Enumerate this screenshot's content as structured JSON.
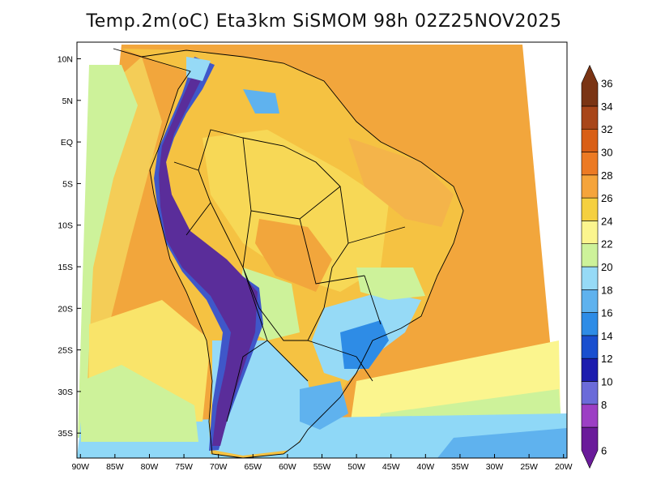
{
  "title": "Temp.2m(oC) Eta3km SiSMOM 98h 02Z25NOV2025",
  "map": {
    "variable": "2 m temperature",
    "units": "oC",
    "lat_labels": [
      "10N",
      "5N",
      "EQ",
      "5S",
      "10S",
      "15S",
      "20S",
      "25S",
      "30S",
      "35S"
    ],
    "lat_values": [
      10,
      5,
      0,
      -5,
      -10,
      -15,
      -20,
      -25,
      -30,
      -35
    ],
    "lon_labels": [
      "90W",
      "85W",
      "80W",
      "75W",
      "70W",
      "65W",
      "60W",
      "55W",
      "50W",
      "45W",
      "40W",
      "35W",
      "30W",
      "25W",
      "20W"
    ],
    "lon_values": [
      -90,
      -85,
      -80,
      -75,
      -70,
      -65,
      -60,
      -55,
      -50,
      -45,
      -40,
      -35,
      -30,
      -25,
      -20
    ],
    "lon_range": [
      -90.5,
      -19.5
    ],
    "lat_range": [
      -38,
      12
    ],
    "regions": [
      {
        "name": "ocean-atlantic-warm",
        "color": "#f2a63c"
      },
      {
        "name": "ocean-pacific-warm",
        "color": "#f2a63c"
      },
      {
        "name": "brazil-interior",
        "color": "#f5c242"
      },
      {
        "name": "southern-ocean-cool",
        "color": "#8fd8f7"
      },
      {
        "name": "andes-cold",
        "color": "#5a2d9a"
      }
    ]
  },
  "colorbar": {
    "labels": [
      "6",
      "8",
      "10",
      "12",
      "14",
      "16",
      "18",
      "20",
      "22",
      "24",
      "26",
      "28",
      "30",
      "32",
      "34",
      "36"
    ],
    "levels": [
      6,
      8,
      10,
      12,
      14,
      16,
      18,
      20,
      22,
      24,
      26,
      28,
      30,
      32,
      34,
      36
    ],
    "colors": [
      "#6a1b9a",
      "#9c3fc4",
      "#6b6bd9",
      "#1c1cae",
      "#1a4fcf",
      "#2e8ce6",
      "#5fb2ee",
      "#96daf6",
      "#cdf29a",
      "#fbf58e",
      "#f5d040",
      "#f5a43b",
      "#ec7a24",
      "#d95f16",
      "#a8461a",
      "#7a3414"
    ]
  }
}
